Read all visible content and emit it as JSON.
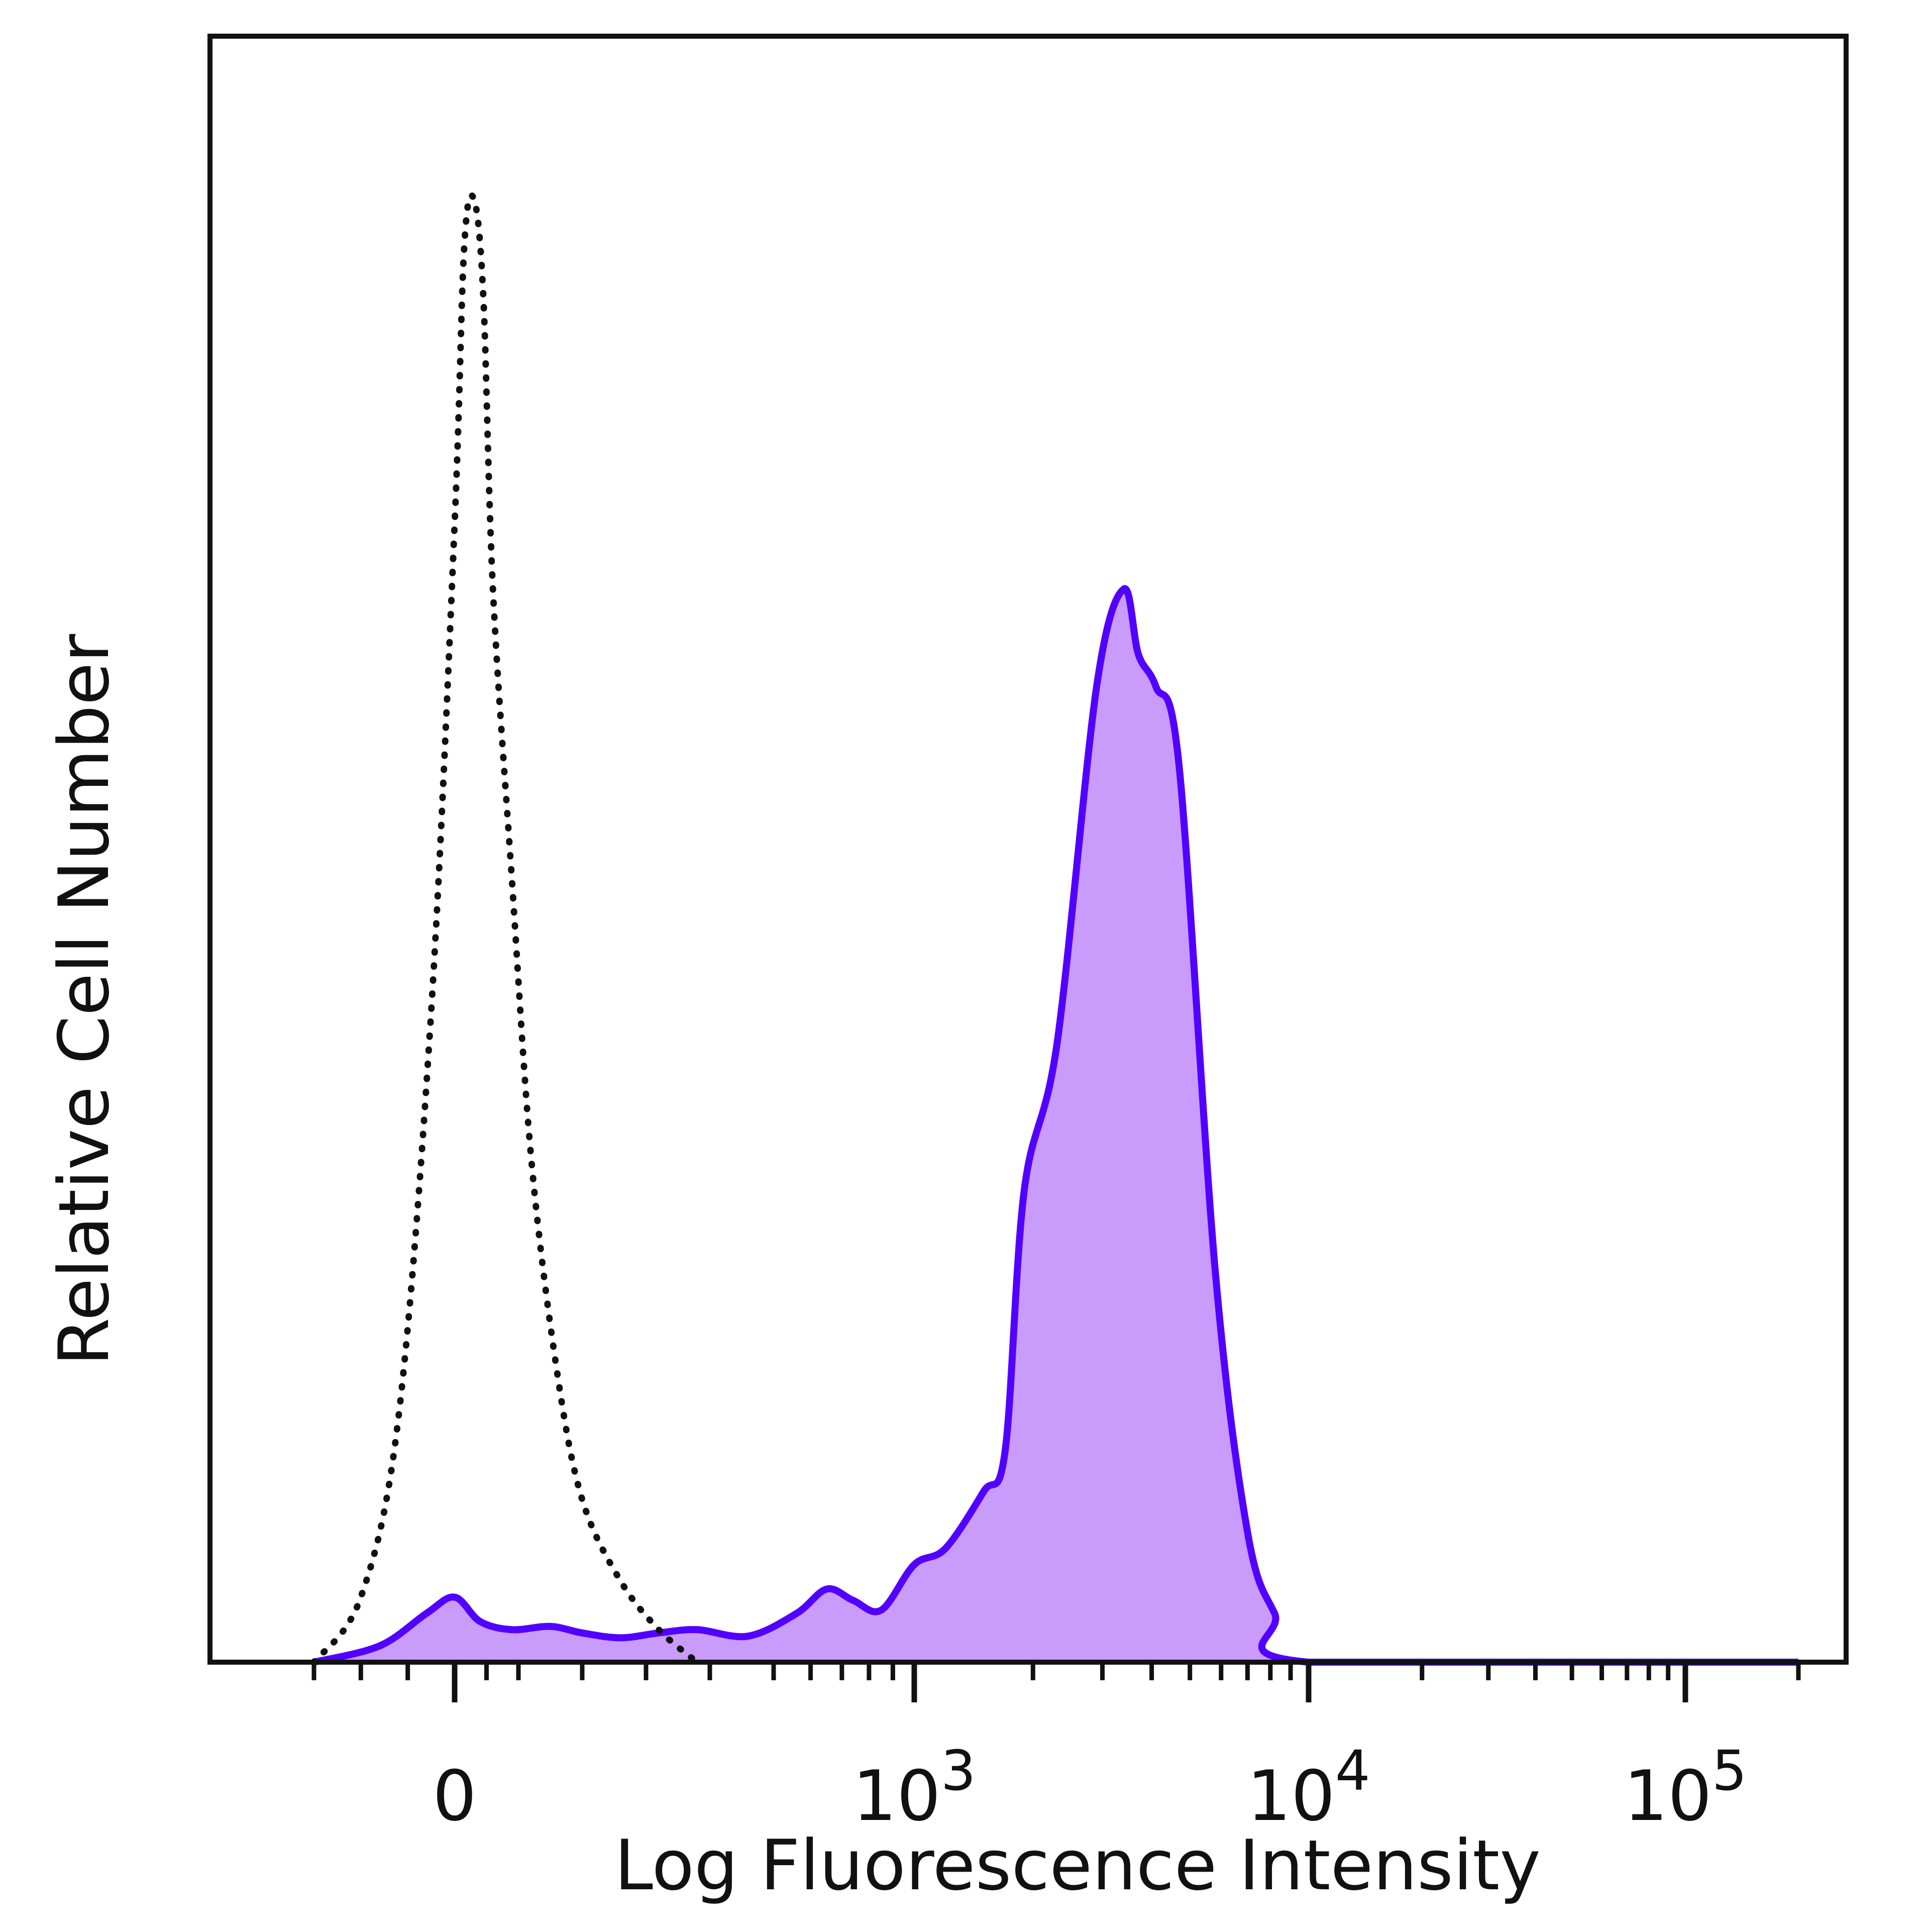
{
  "chart_data": {
    "type": "area",
    "title": "",
    "xlabel": "Log Fluorescence Intensity",
    "ylabel": "Relative Cell Number",
    "x_scale": "biexponential",
    "x_ticks": [
      {
        "value": 0,
        "base": "0",
        "exp": ""
      },
      {
        "value": 1000,
        "base": "10",
        "exp": "3"
      },
      {
        "value": 10000,
        "base": "10",
        "exp": "4"
      },
      {
        "value": 100000,
        "base": "10",
        "exp": "5"
      }
    ],
    "xlim": [
      -150,
      200000
    ],
    "ylim": [
      0,
      100
    ],
    "grid": false,
    "legend": "none",
    "series": [
      {
        "style": "dotted",
        "color": "#111111",
        "x": [
          -150,
          -100,
          -60,
          -25,
          0,
          15,
          30,
          45,
          60,
          90,
          120,
          160,
          200,
          260,
          320,
          380
        ],
        "y": [
          0,
          4,
          15,
          40,
          70,
          87,
          90,
          84,
          66,
          48,
          31,
          18,
          10,
          5,
          2,
          0
        ]
      },
      {
        "style": "filled",
        "color": "#5200ff",
        "fill": "#c99bfb",
        "x": [
          -150,
          -80,
          -30,
          0,
          40,
          90,
          150,
          200,
          260,
          320,
          380,
          460,
          560,
          650,
          740,
          850,
          1000,
          1200,
          1500,
          1700,
          1900,
          2300,
          2900,
          3400,
          3700,
          4100,
          4700,
          5800,
          7000,
          8200,
          10000,
          200000
        ],
        "y": [
          0,
          1,
          3,
          4,
          2.5,
          2,
          2.2,
          1.8,
          1.5,
          1.8,
          2,
          1.6,
          3,
          4.5,
          3.8,
          3.2,
          6,
          7,
          10.5,
          13,
          29,
          38,
          60,
          66,
          62,
          60,
          55,
          24,
          8,
          3,
          0,
          0
        ]
      }
    ]
  }
}
